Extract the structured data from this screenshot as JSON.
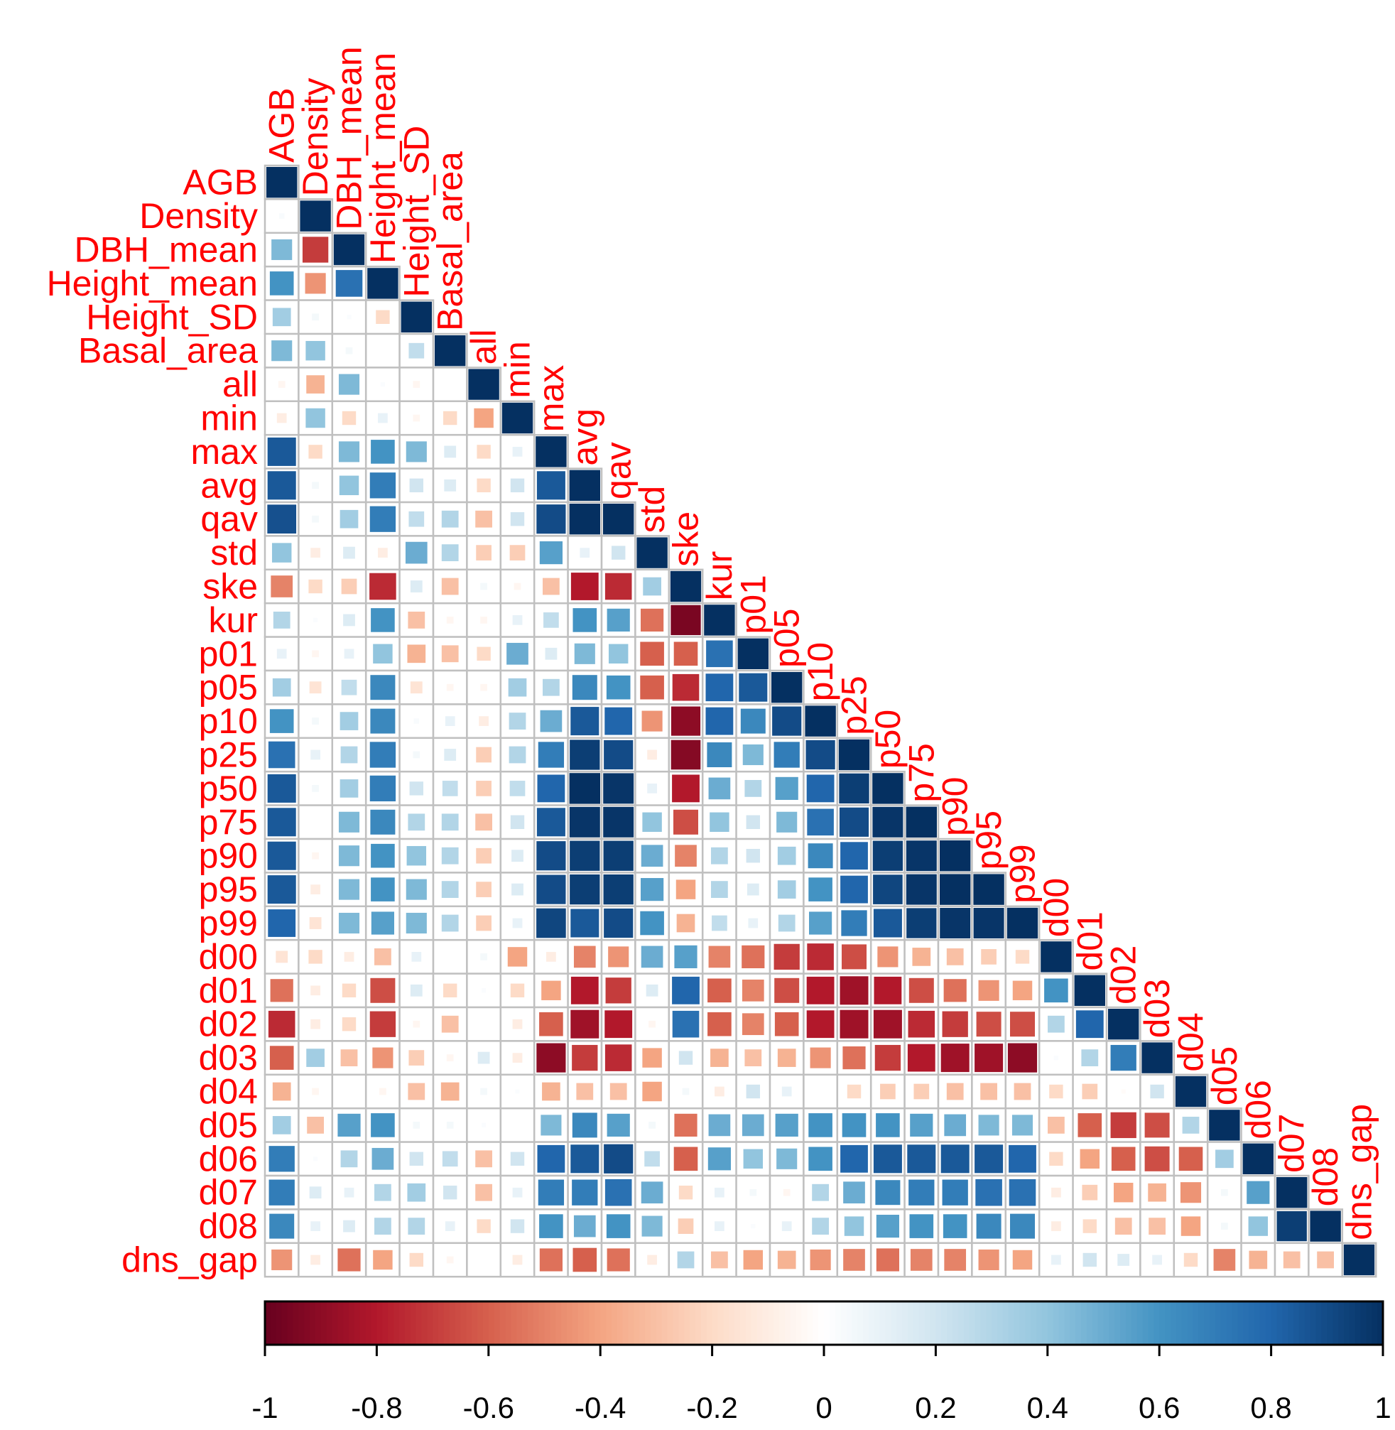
{
  "chart_data": {
    "type": "heatmap",
    "subtype": "correlation-matrix-lower-triangle",
    "method": "square",
    "variables": [
      "AGB",
      "Density",
      "DBH_mean",
      "Height_mean",
      "Height_SD",
      "Basal_area",
      "all",
      "min",
      "max",
      "avg",
      "qav",
      "std",
      "ske",
      "kur",
      "p01",
      "p05",
      "p10",
      "p25",
      "p50",
      "p75",
      "p90",
      "p95",
      "p99",
      "d00",
      "d01",
      "d02",
      "d03",
      "d04",
      "d05",
      "d06",
      "d07",
      "d08",
      "dns_gap"
    ],
    "matrix": [
      [
        1
      ],
      [
        0.03,
        1
      ],
      [
        0.45,
        -0.7,
        1
      ],
      [
        0.6,
        -0.45,
        0.75,
        1
      ],
      [
        0.35,
        0.05,
        0.02,
        -0.2,
        1
      ],
      [
        0.45,
        0.4,
        0.05,
        0,
        0.25,
        1
      ],
      [
        -0.05,
        -0.35,
        0.45,
        0.02,
        -0.05,
        0,
        1
      ],
      [
        -0.1,
        0.4,
        -0.2,
        0.1,
        -0.05,
        -0.2,
        -0.4,
        1
      ],
      [
        0.85,
        -0.2,
        0.45,
        0.6,
        0.45,
        0.15,
        -0.2,
        0.1,
        1
      ],
      [
        0.85,
        0.05,
        0.4,
        0.7,
        0.2,
        0.15,
        -0.2,
        0.2,
        0.85,
        1
      ],
      [
        0.88,
        0.05,
        0.35,
        0.7,
        0.25,
        0.3,
        -0.3,
        0.2,
        0.9,
        1,
        1
      ],
      [
        0.4,
        -0.1,
        0.15,
        -0.1,
        0.5,
        0.3,
        -0.25,
        -0.25,
        0.55,
        0.1,
        0.2,
        1
      ],
      [
        -0.5,
        -0.2,
        -0.25,
        -0.75,
        0.15,
        -0.3,
        0.05,
        -0.05,
        -0.3,
        -0.8,
        -0.75,
        0.35,
        1
      ],
      [
        0.3,
        0.02,
        0.15,
        0.6,
        -0.3,
        -0.05,
        -0.05,
        0.1,
        0.25,
        0.6,
        0.55,
        -0.55,
        -0.95,
        1
      ],
      [
        0.1,
        -0.05,
        0.1,
        0.4,
        -0.35,
        -0.3,
        -0.2,
        0.5,
        0.15,
        0.45,
        0.4,
        -0.6,
        -0.6,
        0.75,
        1
      ],
      [
        0.35,
        -0.15,
        0.25,
        0.65,
        -0.15,
        -0.05,
        -0.05,
        0.35,
        0.3,
        0.65,
        0.6,
        -0.6,
        -0.75,
        0.8,
        0.85,
        1
      ],
      [
        0.6,
        0.05,
        0.35,
        0.65,
        0.03,
        0.1,
        -0.1,
        0.3,
        0.5,
        0.85,
        0.8,
        -0.45,
        -0.9,
        0.8,
        0.65,
        0.9,
        1
      ],
      [
        0.75,
        0.1,
        0.3,
        0.7,
        0.05,
        0.15,
        -0.25,
        0.3,
        0.7,
        0.95,
        0.9,
        -0.1,
        -0.92,
        0.65,
        0.45,
        0.7,
        0.9,
        1
      ],
      [
        0.85,
        0.05,
        0.35,
        0.7,
        0.2,
        0.25,
        -0.25,
        0.25,
        0.8,
        1,
        0.98,
        0.1,
        -0.8,
        0.5,
        0.3,
        0.55,
        0.8,
        0.95,
        1
      ],
      [
        0.85,
        0,
        0.45,
        0.65,
        0.3,
        0.3,
        -0.3,
        0.2,
        0.85,
        0.98,
        0.98,
        0.4,
        -0.65,
        0.4,
        0.2,
        0.45,
        0.75,
        0.9,
        0.98,
        1
      ],
      [
        0.85,
        -0.05,
        0.45,
        0.6,
        0.4,
        0.3,
        -0.25,
        0.15,
        0.9,
        0.95,
        0.95,
        0.5,
        -0.5,
        0.3,
        0.2,
        0.35,
        0.65,
        0.8,
        0.95,
        0.98,
        1
      ],
      [
        0.85,
        -0.1,
        0.45,
        0.6,
        0.45,
        0.3,
        -0.25,
        0.15,
        0.9,
        0.95,
        0.95,
        0.55,
        -0.4,
        0.3,
        0.15,
        0.35,
        0.6,
        0.8,
        0.92,
        0.98,
        1,
        1
      ],
      [
        0.8,
        -0.15,
        0.45,
        0.55,
        0.45,
        0.3,
        -0.25,
        0.1,
        0.92,
        0.85,
        0.9,
        0.6,
        -0.35,
        0.25,
        0.1,
        0.3,
        0.55,
        0.7,
        0.85,
        0.95,
        0.98,
        0.98,
        1
      ],
      [
        -0.15,
        -0.2,
        -0.1,
        -0.3,
        0.1,
        0,
        0.05,
        -0.4,
        -0.1,
        -0.5,
        -0.45,
        0.5,
        0.55,
        -0.5,
        -0.55,
        -0.7,
        -0.75,
        -0.65,
        -0.45,
        -0.35,
        -0.3,
        -0.25,
        -0.2,
        1
      ],
      [
        -0.55,
        -0.1,
        -0.2,
        -0.65,
        0.15,
        -0.2,
        0.02,
        -0.2,
        -0.4,
        -0.8,
        -0.7,
        0.15,
        0.8,
        -0.6,
        -0.5,
        -0.65,
        -0.8,
        -0.85,
        -0.8,
        -0.65,
        -0.55,
        -0.45,
        -0.4,
        0.6,
        1
      ],
      [
        -0.75,
        -0.1,
        -0.2,
        -0.7,
        -0.05,
        -0.3,
        0,
        -0.1,
        -0.6,
        -0.85,
        -0.8,
        -0.05,
        0.75,
        -0.6,
        -0.5,
        -0.6,
        -0.8,
        -0.85,
        -0.85,
        -0.75,
        -0.7,
        -0.65,
        -0.65,
        0.3,
        0.8,
        1
      ],
      [
        -0.6,
        0.35,
        -0.3,
        -0.45,
        -0.25,
        -0.05,
        0.15,
        -0.1,
        -0.9,
        -0.7,
        -0.75,
        -0.4,
        0.2,
        -0.35,
        -0.3,
        -0.35,
        -0.45,
        -0.55,
        -0.7,
        -0.8,
        -0.85,
        -0.85,
        -0.9,
        0.02,
        0.3,
        0.7,
        1
      ],
      [
        -0.35,
        -0.05,
        0,
        -0.05,
        -0.3,
        -0.35,
        0.05,
        0.02,
        -0.35,
        -0.3,
        -0.3,
        -0.4,
        0.05,
        -0.1,
        0.2,
        0.1,
        0,
        -0.2,
        -0.25,
        -0.25,
        -0.3,
        -0.3,
        -0.3,
        -0.2,
        -0.25,
        -0.02,
        0.2,
        1
      ],
      [
        0.35,
        -0.3,
        0.55,
        0.6,
        0.05,
        0.05,
        0.02,
        0,
        0.45,
        0.65,
        0.55,
        0.05,
        -0.55,
        0.5,
        0.5,
        0.55,
        0.6,
        0.6,
        0.6,
        0.55,
        0.5,
        0.45,
        0.45,
        -0.3,
        -0.6,
        -0.7,
        -0.65,
        0.3,
        1
      ],
      [
        0.7,
        0.02,
        0.3,
        0.5,
        0.2,
        0.25,
        -0.3,
        0.2,
        0.8,
        0.85,
        0.9,
        0.25,
        -0.6,
        0.55,
        0.4,
        0.45,
        0.6,
        0.8,
        0.85,
        0.85,
        0.85,
        0.85,
        0.8,
        -0.2,
        -0.4,
        -0.6,
        -0.65,
        -0.6,
        0.35,
        1
      ],
      [
        0.7,
        0.15,
        0.1,
        0.3,
        0.35,
        0.2,
        -0.3,
        0.1,
        0.7,
        0.7,
        0.75,
        0.5,
        -0.2,
        0.1,
        0.05,
        -0.05,
        0.3,
        0.5,
        0.65,
        0.7,
        0.7,
        0.75,
        0.75,
        -0.1,
        -0.25,
        -0.4,
        -0.35,
        -0.45,
        0.05,
        0.55,
        1
      ],
      [
        0.65,
        0.1,
        0.15,
        0.3,
        0.3,
        0.1,
        -0.2,
        0.2,
        0.6,
        0.5,
        0.6,
        0.45,
        -0.25,
        0.1,
        0.02,
        0.1,
        0.3,
        0.4,
        0.55,
        0.6,
        0.6,
        0.65,
        0.65,
        -0.1,
        -0.2,
        -0.3,
        -0.3,
        -0.4,
        0.05,
        0.4,
        0.95,
        1
      ],
      [
        -0.45,
        -0.1,
        -0.55,
        -0.4,
        -0.2,
        -0.05,
        0,
        -0.1,
        -0.55,
        -0.6,
        -0.55,
        -0.1,
        0.3,
        -0.3,
        -0.4,
        -0.35,
        -0.45,
        -0.5,
        -0.55,
        -0.5,
        -0.5,
        -0.45,
        -0.4,
        0.1,
        0.2,
        0.15,
        0.1,
        -0.2,
        -0.5,
        -0.35,
        -0.3,
        -0.3,
        1
      ]
    ],
    "colorbar": {
      "min": -1,
      "max": 1,
      "tick_labels": [
        "-1",
        "-0.8",
        "-0.6",
        "-0.4",
        "-0.2",
        "0",
        "0.2",
        "0.4",
        "0.6",
        "0.8",
        "1"
      ],
      "position": "bottom"
    },
    "colors": {
      "label": "#ff0000",
      "grid": "#c0c0c0",
      "neg_stops": [
        "#67001f",
        "#b2182b",
        "#d6604d",
        "#f4a582",
        "#fddbc7",
        "#ffffff"
      ],
      "pos_stops": [
        "#ffffff",
        "#d1e5f0",
        "#92c5de",
        "#4393c3",
        "#2166ac",
        "#053061"
      ]
    }
  }
}
